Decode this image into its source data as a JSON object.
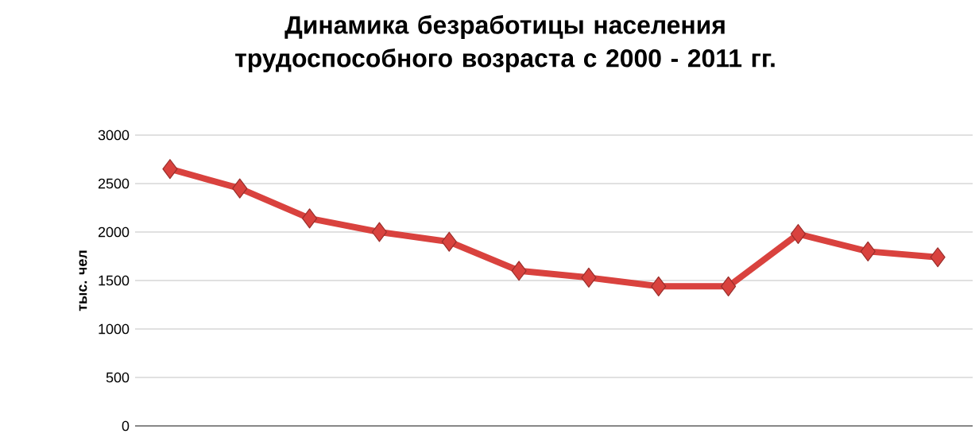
{
  "chart_data": {
    "type": "line",
    "title": "Динамика безработицы населения трудоспособного возраста с 2000 - 2011 гг.",
    "ylabel": "тыс. чел",
    "categories": [
      null,
      null,
      null,
      null,
      null,
      null,
      null,
      null,
      null,
      null,
      null,
      null
    ],
    "series": [
      {
        "color": "#d9423e",
        "values": [
          2650,
          2450,
          2140,
          2000,
          1900,
          1600,
          1530,
          1440,
          1440,
          1980,
          1800,
          1740
        ]
      }
    ],
    "ylim": [
      0,
      3000
    ],
    "yticks": [
      0,
      500,
      1000,
      1500,
      2000,
      2500,
      3000
    ],
    "grid": "y",
    "marker": "diamond",
    "line_style": "solid",
    "tick_labels": "y"
  }
}
